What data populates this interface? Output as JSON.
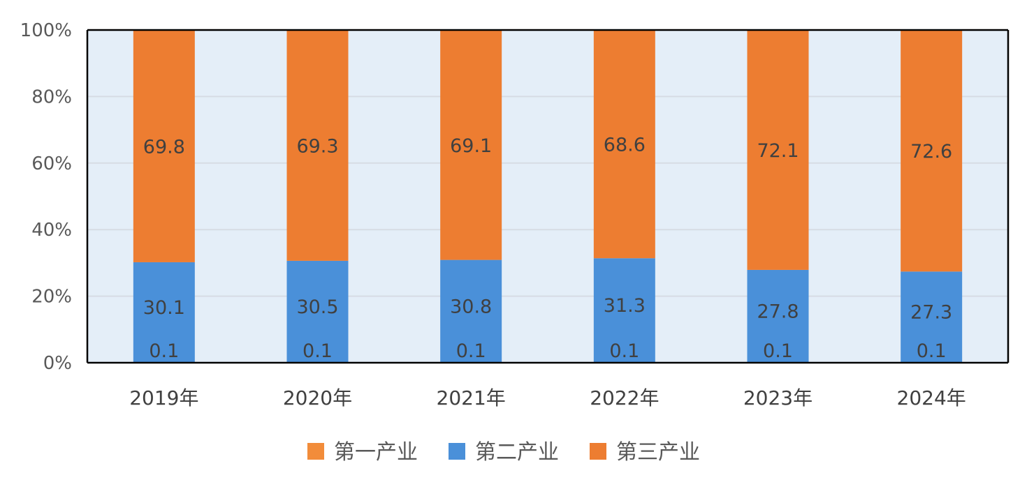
{
  "chart_data": {
    "type": "bar",
    "stacked": true,
    "percent_axis": true,
    "categories": [
      "2019年",
      "2020年",
      "2021年",
      "2022年",
      "2023年",
      "2024年"
    ],
    "series": [
      {
        "name": "第一产业",
        "values": [
          0.1,
          0.1,
          0.1,
          0.1,
          0.1,
          0.1
        ],
        "color": "#F28C3A"
      },
      {
        "name": "第二产业",
        "values": [
          30.1,
          30.5,
          30.8,
          31.3,
          27.8,
          27.3
        ],
        "color": "#4A90D9"
      },
      {
        "name": "第三产业",
        "values": [
          69.8,
          69.3,
          69.1,
          68.6,
          72.1,
          72.6
        ],
        "color": "#ED7D31"
      }
    ],
    "y_ticks": [
      "0%",
      "20%",
      "40%",
      "60%",
      "80%",
      "100%"
    ],
    "ylim": [
      0,
      100
    ],
    "grid": true,
    "legend_position": "bottom",
    "plot_background": "#E4EEF8"
  }
}
